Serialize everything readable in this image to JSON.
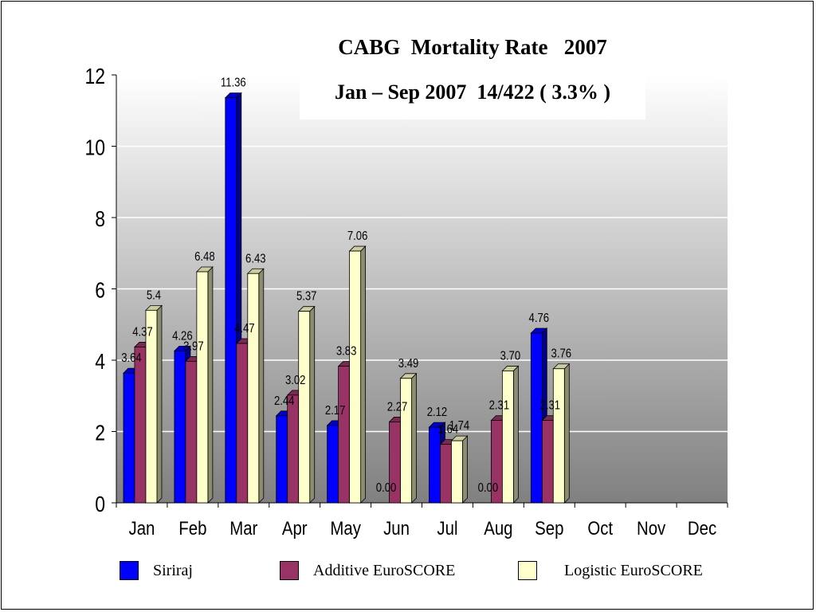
{
  "chart_data": {
    "type": "bar",
    "title": "CABG  Mortality Rate   2007",
    "subtitle": "Jan – Sep 2007  14/422 ( 3.3% )",
    "categories": [
      "Jan",
      "Feb",
      "Mar",
      "Apr",
      "May",
      "Jun",
      "Jul",
      "Aug",
      "Sep",
      "Oct",
      "Nov",
      "Dec"
    ],
    "ylim": [
      0,
      12
    ],
    "yticks": [
      0,
      2,
      4,
      6,
      8,
      10,
      12
    ],
    "grid": true,
    "legend_position": "bottom",
    "series": [
      {
        "name": "Siriraj",
        "color": "#0000ff",
        "values": [
          3.64,
          4.26,
          11.36,
          2.44,
          2.17,
          0,
          2.12,
          0,
          4.76,
          null,
          null,
          null
        ],
        "labels": [
          "3.64",
          "4.26",
          "11.36",
          "2.44",
          "2.17",
          "0.00",
          "2.12",
          "0.00",
          "4.76",
          "",
          "",
          ""
        ]
      },
      {
        "name": "Additive EuroSCORE",
        "color": "#993366",
        "values": [
          4.37,
          3.97,
          4.47,
          3.02,
          3.83,
          2.27,
          1.64,
          2.31,
          2.31,
          null,
          null,
          null
        ],
        "labels": [
          "4.37",
          "3.97",
          "4.47",
          "3.02",
          "3.83",
          "2.27",
          "1.64",
          "2.31",
          "2.31",
          "",
          "",
          ""
        ]
      },
      {
        "name": "Logistic EuroSCORE",
        "color": "#ffffcc",
        "values": [
          5.4,
          6.48,
          6.43,
          5.37,
          7.06,
          3.49,
          1.74,
          3.7,
          3.76,
          null,
          null,
          null
        ],
        "labels": [
          "5.4",
          "6.48",
          "6.43",
          "5.37",
          "7.06",
          "3.49",
          "1.74",
          "3.70",
          "3.76",
          "",
          "",
          ""
        ]
      }
    ]
  }
}
